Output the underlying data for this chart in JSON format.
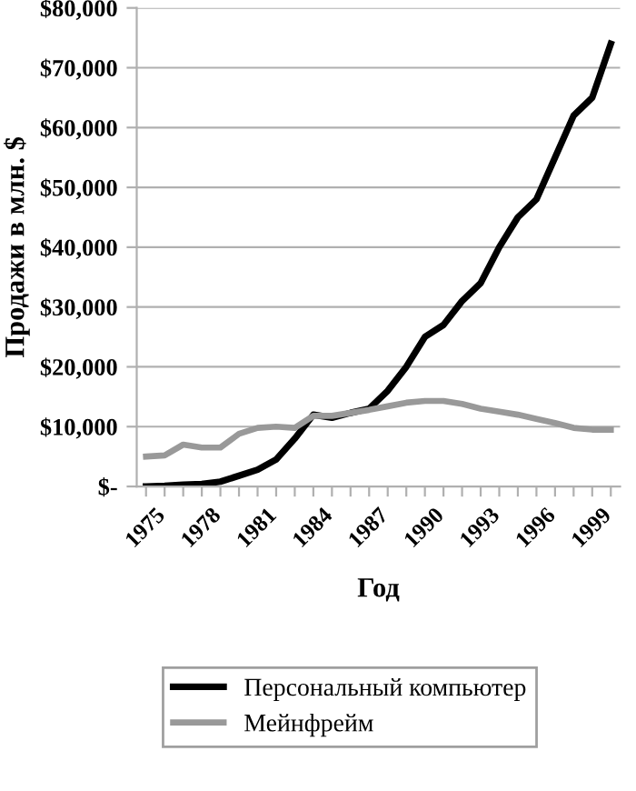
{
  "chart_data": {
    "type": "line",
    "xlabel": "Год",
    "ylabel": "Продажи в млн. $",
    "categories": [
      "1975",
      null,
      null,
      "1978",
      null,
      null,
      "1981",
      null,
      null,
      "1984",
      null,
      null,
      "1987",
      null,
      null,
      "1990",
      null,
      null,
      "1993",
      null,
      null,
      "1996",
      null,
      null,
      "1999",
      null
    ],
    "series": [
      {
        "name": "Персональный компьютер",
        "color": "#000000",
        "values": [
          0,
          100,
          300,
          400,
          800,
          1800,
          2800,
          4500,
          8000,
          12000,
          11500,
          12300,
          13000,
          16000,
          20000,
          25000,
          27000,
          31000,
          34000,
          40000,
          45000,
          48000,
          55000,
          62000,
          65000,
          74000
        ]
      },
      {
        "name": "Мейнфрейм",
        "color": "#999999",
        "values": [
          5000,
          5200,
          7000,
          6500,
          6500,
          8800,
          9800,
          10000,
          9800,
          11800,
          11800,
          12300,
          12800,
          13400,
          14000,
          14300,
          14300,
          13800,
          13000,
          12500,
          12000,
          11300,
          10600,
          9800,
          9500,
          9500
        ]
      }
    ],
    "ylim": [
      0,
      80000
    ],
    "yticks": [
      {
        "value": 0,
        "label": "$-"
      },
      {
        "value": 10000,
        "label": "$10,000"
      },
      {
        "value": 20000,
        "label": "$20,000"
      },
      {
        "value": 30000,
        "label": "$30,000"
      },
      {
        "value": 40000,
        "label": "$40,000"
      },
      {
        "value": 50000,
        "label": "$50,000"
      },
      {
        "value": 60000,
        "label": "$60,000"
      },
      {
        "value": 70000,
        "label": "$70,000"
      },
      {
        "value": 80000,
        "label": "$80,000"
      }
    ],
    "grid": "y",
    "legend": "bottom",
    "marker": "none",
    "line_style": "solid"
  }
}
